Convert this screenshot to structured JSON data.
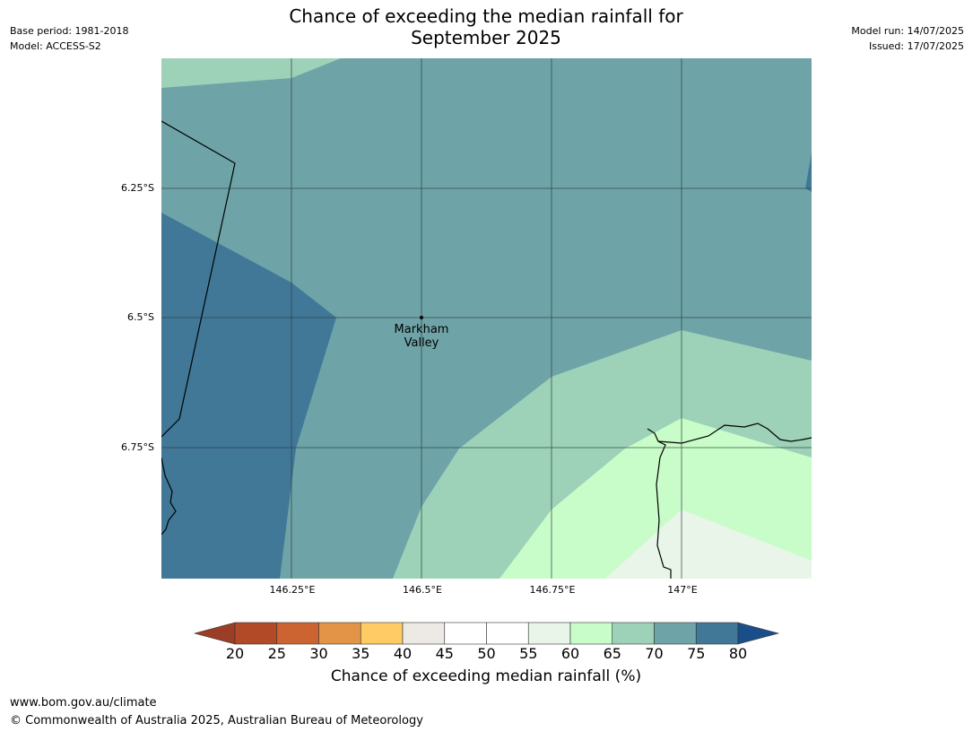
{
  "title": {
    "line1": "Chance of exceeding the median rainfall for",
    "line2": "September 2025"
  },
  "meta": {
    "base_period": "Base period: 1981-2018",
    "model": "Model: ACCESS-S2",
    "model_run": "Model run: 14/07/2025",
    "issued": "Issued: 17/07/2025"
  },
  "map": {
    "latitude_labels": [
      "6.25°S",
      "6.5°S",
      "6.75°S"
    ],
    "longitude_labels": [
      "146.25°E",
      "146.5°E",
      "146.75°E",
      "147°E"
    ],
    "place": {
      "name_line1": "Markham",
      "name_line2": "Valley"
    }
  },
  "colorbar": {
    "title": "Chance of exceeding median rainfall (%)",
    "ticks": [
      "20",
      "25",
      "30",
      "35",
      "40",
      "45",
      "50",
      "55",
      "60",
      "65",
      "70",
      "75",
      "80"
    ],
    "colors": {
      "below_20": "#9c3d25",
      "20-25": "#b24a27",
      "25-30": "#cc6432",
      "30-35": "#e39446",
      "35-40": "#fecb65",
      "40-45": "#ede9e4",
      "45-50": "#ffffff",
      "50-55": "#ffffff",
      "55-60": "#e9f5e9",
      "60-65": "#c8fcc8",
      "65-70": "#9dd1b8",
      "70-75": "#6ea4a7",
      "75-80": "#417898",
      "above_80": "#1a4e8a"
    }
  },
  "footer": {
    "url": "www.bom.gov.au/climate",
    "copyright": "© Commonwealth of Australia 2025, Australian Bureau of Meteorology"
  }
}
